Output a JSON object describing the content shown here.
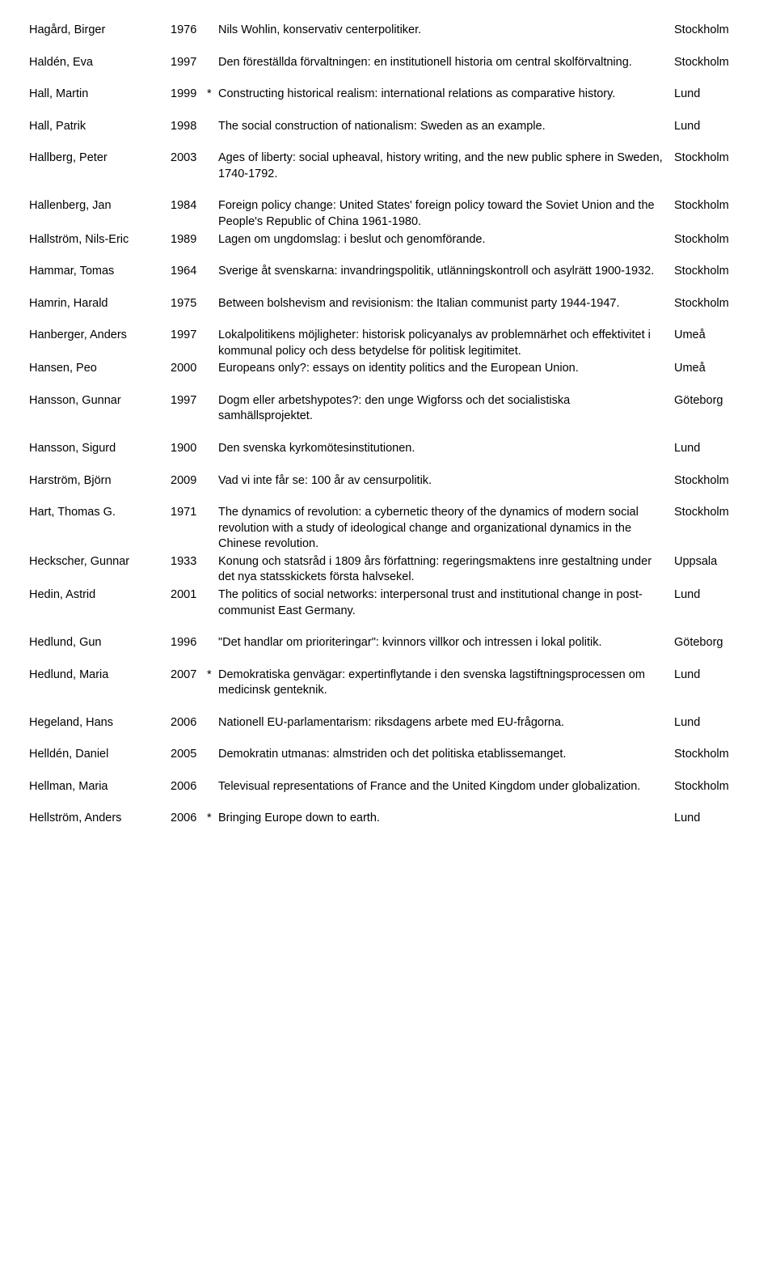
{
  "rows": [
    {
      "author": "Hagård, Birger",
      "year": "1976",
      "star": "",
      "title": "Nils Wohlin, konservativ centerpolitiker.",
      "place": "Stockholm"
    },
    {
      "author": "Haldén, Eva",
      "year": "1997",
      "star": "",
      "title": "Den föreställda förvaltningen: en institutionell historia om central skolförvaltning.",
      "place": "Stockholm"
    },
    {
      "author": "Hall, Martin",
      "year": "1999",
      "star": "*",
      "title": "Constructing historical realism: international relations as comparative history.",
      "place": "Lund"
    },
    {
      "author": "Hall, Patrik",
      "year": "1998",
      "star": "",
      "title": "The social construction of nationalism: Sweden as an example.",
      "place": "Lund"
    },
    {
      "author": "Hallberg, Peter",
      "year": "2003",
      "star": "",
      "title": "Ages of liberty: social upheaval, history writing, and the new public sphere in Sweden, 1740-1792.",
      "place": "Stockholm"
    },
    {
      "author": "Hallenberg, Jan",
      "year": "1984",
      "star": "",
      "title": "Foreign policy change: United States' foreign policy toward the Soviet Union and the People's Republic of China 1961-1980.",
      "place": "Stockholm"
    },
    {
      "author": "Hallström, Nils-Eric",
      "year": "1989",
      "star": "",
      "title": "Lagen om ungdomslag: i beslut och genomförande.",
      "place": "Stockholm"
    },
    {
      "author": "Hammar, Tomas",
      "year": "1964",
      "star": "",
      "title": "Sverige åt svenskarna: invandringspolitik, utlänningskontroll och asylrätt 1900-1932.",
      "place": "Stockholm"
    },
    {
      "author": "Hamrin, Harald",
      "year": "1975",
      "star": "",
      "title": "Between bolshevism and revisionism: the Italian communist party 1944-1947.",
      "place": "Stockholm"
    },
    {
      "author": "Hanberger, Anders",
      "year": "1997",
      "star": "",
      "title": "Lokalpolitikens möjligheter: historisk policyanalys av problemnärhet och effektivitet i kommunal policy och dess betydelse för politisk legitimitet.",
      "place": "Umeå"
    },
    {
      "author": "Hansen, Peo",
      "year": "2000",
      "star": "",
      "title": "Europeans only?: essays on identity politics and the European Union.",
      "place": "Umeå"
    },
    {
      "author": "Hansson, Gunnar",
      "year": "1997",
      "star": "",
      "title": "Dogm eller arbetshypotes?: den unge Wigforss och det socialistiska samhällsprojektet.",
      "place": "Göteborg"
    },
    {
      "author": "Hansson, Sigurd",
      "year": "1900",
      "star": "",
      "title": "Den svenska kyrkomötesinstitutionen.",
      "place": "Lund"
    },
    {
      "author": "Harström, Björn",
      "year": "2009",
      "star": "",
      "title": "Vad vi inte får se: 100 år av censurpolitik.",
      "place": "Stockholm"
    },
    {
      "author": "Hart, Thomas G.",
      "year": "1971",
      "star": "",
      "title": "The dynamics of revolution: a cybernetic theory of the dynamics of modern social revolution with a study of ideological change and organizational dynamics in the Chinese revolution.",
      "place": "Stockholm"
    },
    {
      "author": "Heckscher, Gunnar",
      "year": "1933",
      "star": "",
      "title": "Konung och statsråd i 1809 års författning: regeringsmaktens inre gestaltning under det nya statsskickets första halvsekel.",
      "place": "Uppsala"
    },
    {
      "author": "Hedin, Astrid",
      "year": "2001",
      "star": "",
      "title": "The politics of social networks: interpersonal trust and institutional change in post-communist East Germany.",
      "place": "Lund"
    },
    {
      "author": "Hedlund, Gun",
      "year": "1996",
      "star": "",
      "title": "\"Det handlar om prioriteringar\": kvinnors villkor och intressen i lokal politik.",
      "place": "Göteborg"
    },
    {
      "author": "Hedlund, Maria",
      "year": "2007",
      "star": "*",
      "title": "Demokratiska genvägar: expertinflytande i den svenska lagstiftningsprocessen om medicinsk genteknik.",
      "place": "Lund"
    },
    {
      "author": "Hegeland, Hans",
      "year": "2006",
      "star": "",
      "title": "Nationell EU-parlamentarism: riksdagens arbete med EU-frågorna.",
      "place": "Lund"
    },
    {
      "author": "Helldén, Daniel",
      "year": "2005",
      "star": "",
      "title": "Demokratin utmanas: almstriden och det politiska etablissemanget.",
      "place": "Stockholm"
    },
    {
      "author": "Hellman, Maria",
      "year": "2006",
      "star": "",
      "title": "Televisual representations of France and the United Kingdom under globalization.",
      "place": "Stockholm"
    },
    {
      "author": "Hellström, Anders",
      "year": "2006",
      "star": "*",
      "title": "Bringing Europe down to earth.",
      "place": "Lund"
    }
  ],
  "spacing": {
    "tight_after": [
      5,
      9,
      14,
      15
    ],
    "extra_after": [
      0,
      1,
      2,
      3,
      4,
      6,
      7,
      8,
      10,
      11,
      12,
      13,
      16,
      17,
      18,
      19,
      20,
      21
    ]
  }
}
